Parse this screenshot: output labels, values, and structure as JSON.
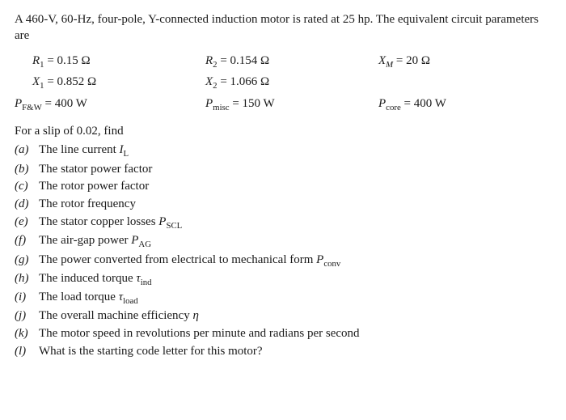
{
  "intro": "A 460-V, 60-Hz, four-pole, Y-connected induction motor is rated at 25 hp. The equivalent circuit parameters are",
  "params": {
    "r1_lhs": "R",
    "r1_sub": "1",
    "r1_rhs": " = 0.15 Ω",
    "r2_lhs": "R",
    "r2_sub": "2",
    "r2_rhs": " = 0.154 Ω",
    "xm_lhs": "X",
    "xm_sub": "M",
    "xm_rhs": " = 20 Ω",
    "x1_lhs": "X",
    "x1_sub": "1",
    "x1_rhs": " = 0.852 Ω",
    "x2_lhs": "X",
    "x2_sub": "2",
    "x2_rhs": " = 1.066 Ω",
    "pfw_lhs": "P",
    "pfw_sub": "F&W",
    "pfw_rhs": " = 400 W",
    "pmisc_lhs": "P",
    "pmisc_sub": "misc",
    "pmisc_rhs": " = 150 W",
    "pcore_lhs": "P",
    "pcore_sub": "core",
    "pcore_rhs": " = 400 W"
  },
  "slipline": "For a slip of 0.02, find",
  "q": {
    "a_lab": "(a)",
    "a_t1": "The line current ",
    "a_sym": "I",
    "a_sub": "L",
    "b_lab": "(b)",
    "b_txt": "The stator power factor",
    "c_lab": "(c)",
    "c_txt": "The rotor power factor",
    "d_lab": "(d)",
    "d_txt": "The rotor frequency",
    "e_lab": "(e)",
    "e_t1": "The stator copper losses ",
    "e_sym": "P",
    "e_sub": "SCL",
    "f_lab": "(f)",
    "f_t1": "The air-gap power ",
    "f_sym": "P",
    "f_sub": "AG",
    "g_lab": "(g)",
    "g_t1": "The power converted from electrical to mechanical form ",
    "g_sym": "P",
    "g_sub": "conv",
    "h_lab": "(h)",
    "h_t1": "The induced torque ",
    "h_sym": "τ",
    "h_sub": "ind",
    "i_lab": "(i)",
    "i_t1": "The load torque ",
    "i_sym": "τ",
    "i_sub": "load",
    "j_lab": "(j)",
    "j_t1": "The overall machine efficiency ",
    "j_sym": "η",
    "k_lab": "(k)",
    "k_txt": "The motor speed in revolutions per minute and radians per second",
    "l_lab": "(l)",
    "l_txt": "What is the starting code letter for this motor?"
  }
}
